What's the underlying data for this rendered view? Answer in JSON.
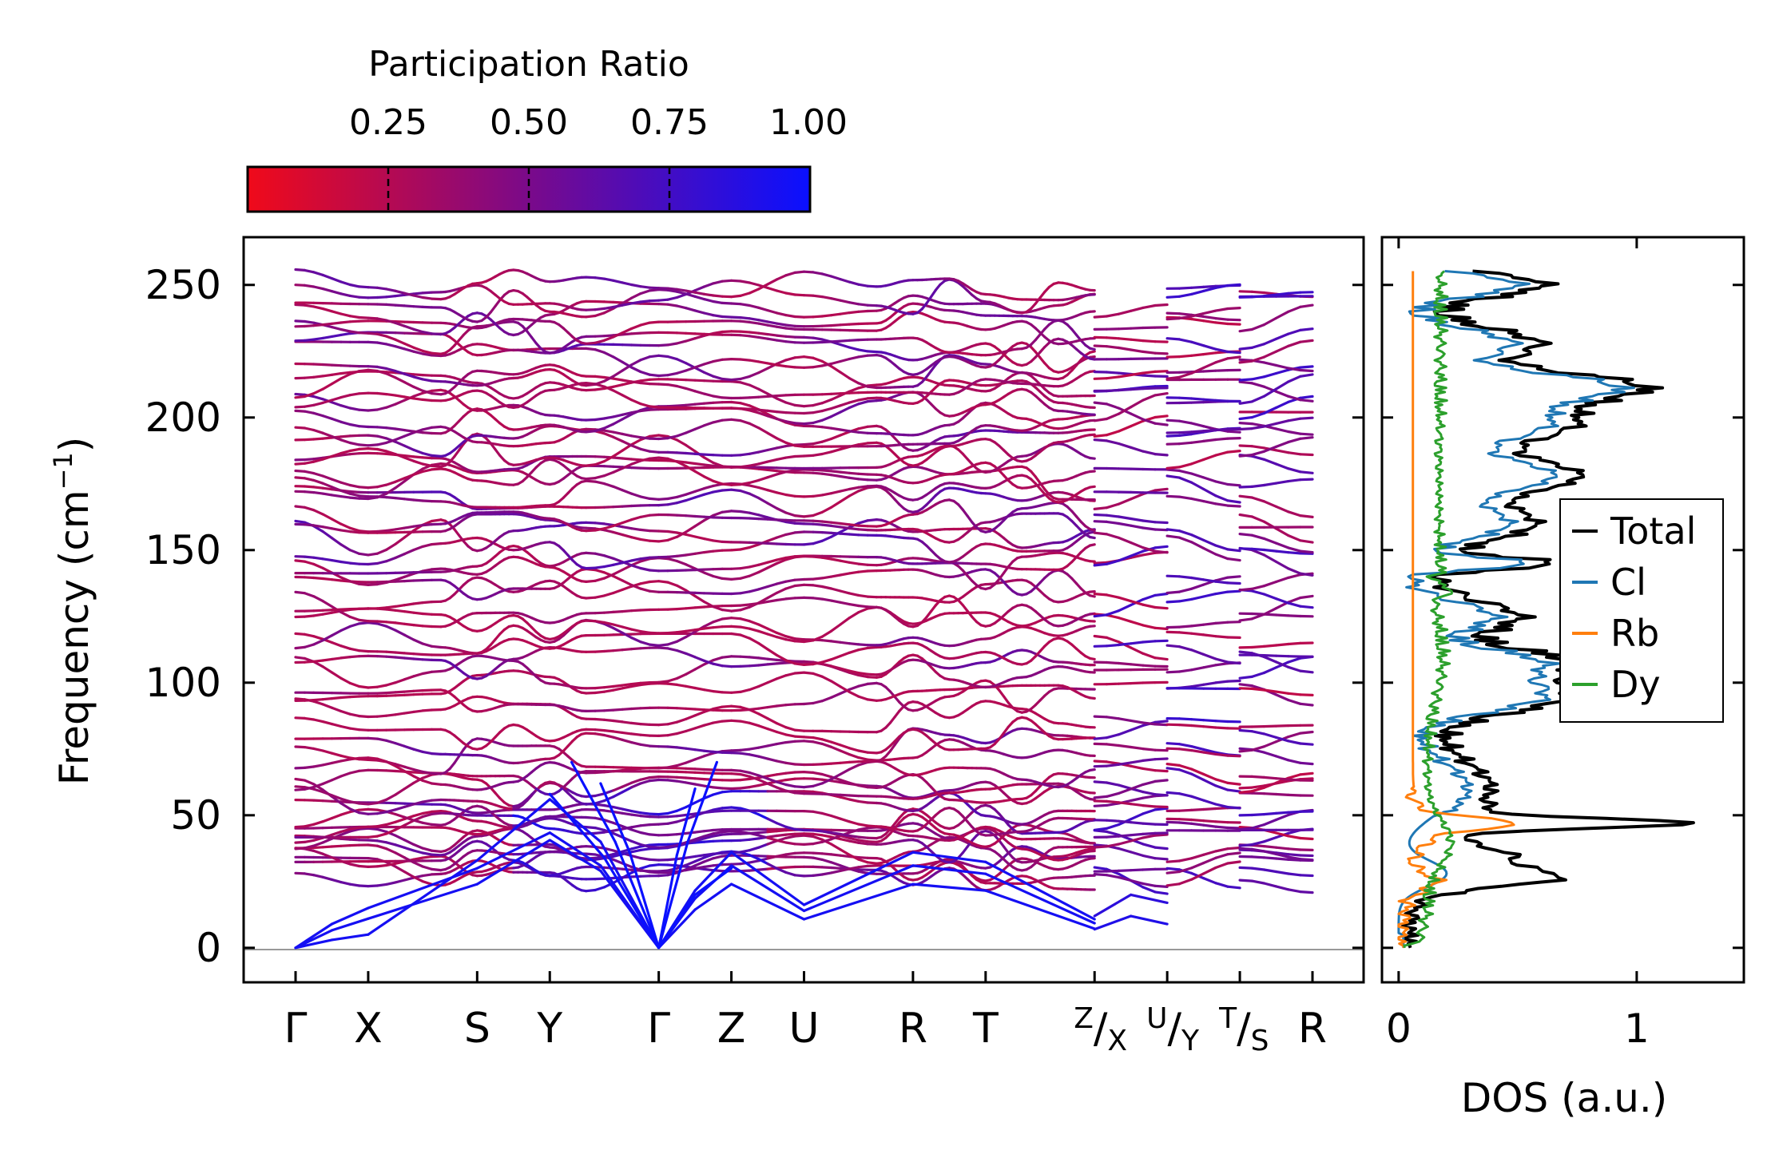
{
  "colors": {
    "cbar_low": "#f00a1a",
    "cbar_mid": "#7a0a8a",
    "cbar_high": "#0a10ff",
    "total": "#000000",
    "cl": "#1f77b4",
    "rb": "#ff7f0e",
    "dy": "#2ca02c",
    "zero_line": "#999999"
  },
  "chart_data": [
    {
      "type": "line",
      "title": "",
      "ylabel": "Frequency (cm",
      "ylabel_sup": "−1",
      "ylabel_close": ")",
      "ylim": [
        -13,
        268
      ],
      "yticks": [
        0,
        50,
        100,
        150,
        200,
        250
      ],
      "colorbar": {
        "label": "Participation Ratio",
        "range": [
          0.0,
          1.0
        ],
        "ticks": [
          "0.25",
          "0.50",
          "0.75",
          "1.00"
        ],
        "tick_values": [
          0.25,
          0.5,
          0.75,
          1.0
        ]
      },
      "path_ticks": [
        {
          "k": 0.0,
          "label": "Γ"
        },
        {
          "k": 1.0,
          "label": "X"
        },
        {
          "k": 2.5,
          "label": "S"
        },
        {
          "k": 3.5,
          "label": "Y"
        },
        {
          "k": 5.0,
          "label": "Γ"
        },
        {
          "k": 6.0,
          "label": "Z"
        },
        {
          "k": 7.0,
          "label": "U"
        },
        {
          "k": 8.5,
          "label": "R"
        },
        {
          "k": 9.5,
          "label": "T"
        },
        {
          "k": 11.0,
          "label_top": "Z",
          "label_bottom": "X"
        },
        {
          "k": 12.0,
          "label_top": "U",
          "label_bottom": "Y"
        },
        {
          "k": 13.0,
          "label_top": "T",
          "label_bottom": "S"
        },
        {
          "k": 14.0,
          "label": "R"
        }
      ],
      "segments": [
        [
          0,
          11
        ],
        [
          11,
          12
        ],
        [
          12,
          13
        ],
        [
          13,
          14
        ]
      ],
      "gamma_branches": [
        {
          "freq_at_X": 11,
          "freq_mid_S": 24,
          "freq_mid_Y": 58,
          "freq_at_Z": 24
        },
        {
          "freq_at_X": 15,
          "freq_mid_S": 30,
          "freq_mid_Y": 62,
          "freq_at_Z": 31
        },
        {
          "freq_at_X": 5,
          "freq_mid_S": 33,
          "freq_mid_Y": 80,
          "freq_at_Z": 36
        }
      ],
      "series": [
        {
          "name": "band",
          "anchors": [
            44,
            46,
            45,
            44,
            47,
            49,
            50,
            48,
            47,
            45,
            45,
            44,
            43,
            42,
            42
          ]
        },
        {
          "name": "band",
          "anchors": [
            28,
            27,
            30,
            29,
            27,
            26,
            26,
            27,
            27,
            27,
            26,
            25,
            25,
            25,
            25
          ]
        }
      ]
    },
    {
      "type": "line",
      "title": "",
      "xlabel": "DOS (a.u.)",
      "xlim": [
        -0.07,
        1.45
      ],
      "xticks": [
        0,
        1
      ],
      "ylim": [
        -13,
        268
      ],
      "legend_position": "center-right",
      "series": [
        {
          "name": "Total",
          "key": "total"
        },
        {
          "name": "Cl",
          "key": "cl"
        },
        {
          "name": "Rb",
          "key": "rb"
        },
        {
          "name": "Dy",
          "key": "dy"
        }
      ]
    }
  ]
}
